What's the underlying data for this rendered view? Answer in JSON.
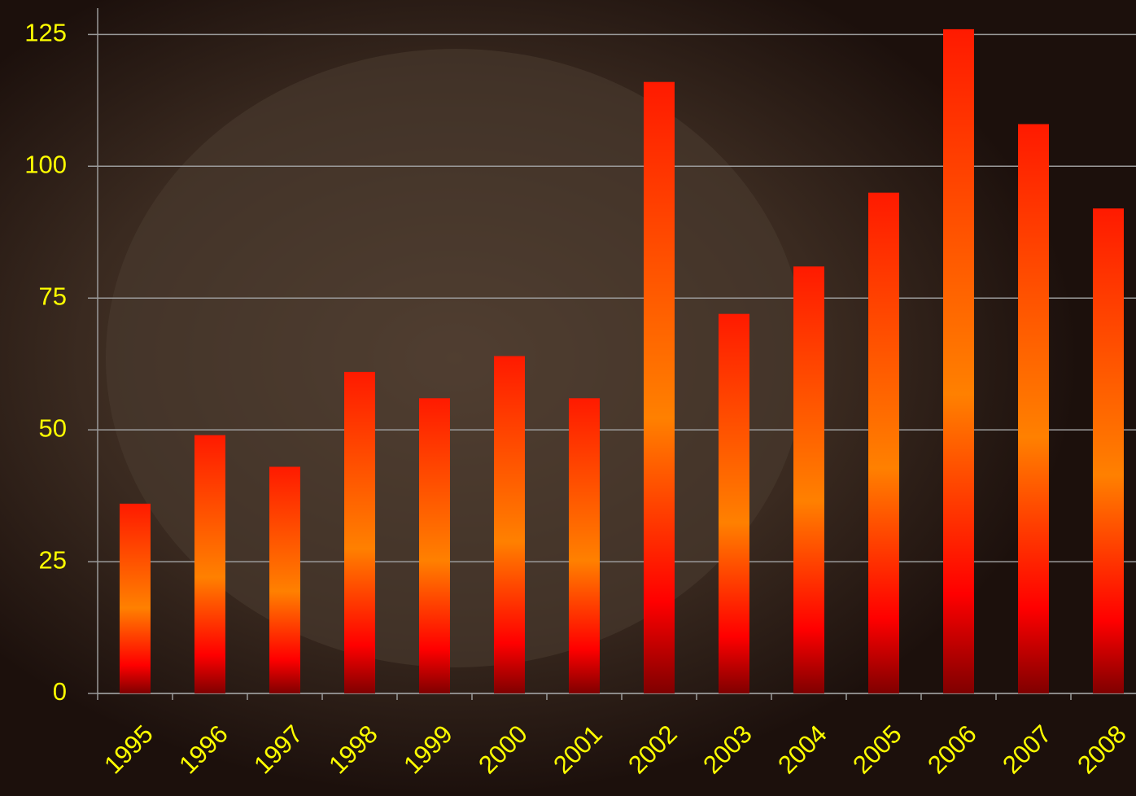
{
  "chart_data": {
    "type": "bar",
    "categories": [
      "1995",
      "1996",
      "1997",
      "1998",
      "1999",
      "2000",
      "2001",
      "2002",
      "2003",
      "2004",
      "2005",
      "2006",
      "2007",
      "2008"
    ],
    "values": [
      36,
      49,
      43,
      61,
      56,
      64,
      56,
      116,
      72,
      81,
      95,
      126,
      108,
      92
    ],
    "color": "#ff2000",
    "ylim": [
      0,
      130
    ],
    "yticks": [
      0,
      25,
      50,
      75,
      100,
      125
    ],
    "grid": true
  }
}
